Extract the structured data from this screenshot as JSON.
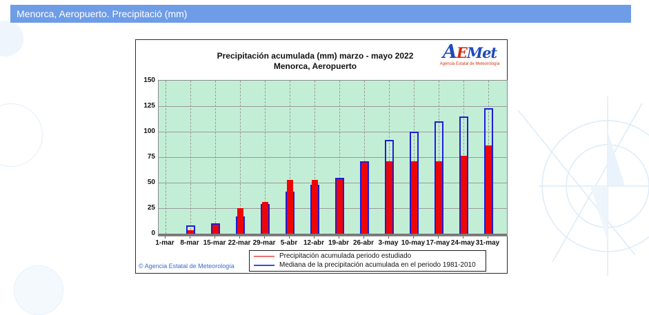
{
  "header": {
    "title": "Menorca, Aeropuerto. Precipitació (mm)",
    "bg_color": "#6e9ce6"
  },
  "logo": {
    "part_a": "A",
    "part_e": "E",
    "part_met": "Met",
    "subtitle": "Agencia Estatal de Meteorología"
  },
  "chart_data": {
    "type": "bar",
    "title_line1": "Precipitación acumulada (mm) marzo - mayo 2022",
    "title_line2": "Menorca, Aeropuerto",
    "categories": [
      "1-mar",
      "8-mar",
      "15-mar",
      "22-mar",
      "29-mar",
      "5-abr",
      "12-abr",
      "19-abr",
      "26-abr",
      "3-may",
      "10-may",
      "17-may",
      "24-may",
      "31-may"
    ],
    "series": [
      {
        "name": "Precipitación acumulada periodo estudiado",
        "color": "#ee0404",
        "legend_color": "#e87272",
        "values": [
          0,
          4.5,
          10,
          25,
          31,
          53,
          53,
          55,
          71,
          72,
          72,
          72,
          78,
          88
        ]
      },
      {
        "name": "Mediana de la precipitación acumulada en el periodo 1981-2010",
        "color": "#1d1dd8",
        "legend_color": "#4747cc",
        "values": [
          0,
          8,
          10,
          17,
          29,
          41,
          48,
          55,
          71,
          92,
          100,
          110,
          115,
          123
        ]
      }
    ],
    "ylim": [
      0,
      150
    ],
    "yticks": [
      0,
      25,
      50,
      75,
      100,
      125,
      150
    ],
    "grid": true,
    "plot_bg": "#c3eed6",
    "legend_position": "bottom-center"
  },
  "footer": {
    "copyright": "© Agencia Estatal de Meteorología"
  }
}
